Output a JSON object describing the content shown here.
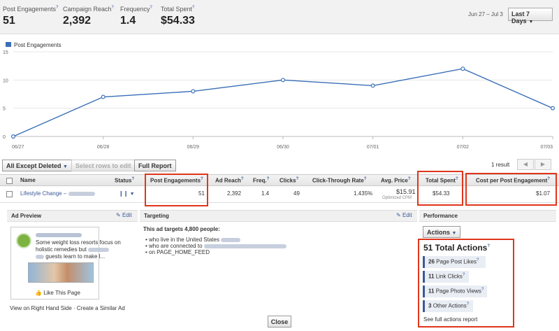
{
  "stats": [
    {
      "label": "Post Engagements",
      "value": "51"
    },
    {
      "label": "Campaign Reach",
      "value": "2,392"
    },
    {
      "label": "Frequency",
      "value": "1.4"
    },
    {
      "label": "Total Spent",
      "value": "$54.33"
    }
  ],
  "help_mark": "?",
  "date_range": "Jun 27 – Jul 3",
  "range_button": "Last 7 Days",
  "chart_data": {
    "type": "line",
    "legend": [
      "Post Engagements"
    ],
    "x": [
      "06/27",
      "06/28",
      "06/29",
      "06/30",
      "07/01",
      "07/02",
      "07/03"
    ],
    "series": [
      {
        "name": "Post Engagements",
        "values": [
          0,
          7,
          8,
          10,
          9,
          12,
          5
        ]
      }
    ],
    "yticks": [
      "0",
      "5",
      "10",
      "15"
    ],
    "ylim": [
      0,
      15
    ],
    "color": "#3a6fb7",
    "grid": true
  },
  "toolbar": {
    "filter_label": "All Except Deleted",
    "select_label": "Select rows to edit",
    "full_report_label": "Full Report",
    "result_count": "1 result"
  },
  "table": {
    "headers": [
      "Name",
      "Status",
      "Post Engagements",
      "Ad Reach",
      "Freq.",
      "Clicks",
      "Click-Through Rate",
      "Avg. Price",
      "Total Spent",
      "Cost per Post Engagement"
    ],
    "row": {
      "name": "Lifestyle Change –",
      "post_engagements": "51",
      "ad_reach": "2,392",
      "freq": "1.4",
      "clicks": "49",
      "ctr": "1.435%",
      "avg_price": "$15.91",
      "avg_price_sub": "Optimized CPM",
      "total_spent": "$54.33",
      "cost_per": "$1.07"
    }
  },
  "ad_preview": {
    "header": "Ad Preview",
    "edit_label": "Edit",
    "body_lines": [
      "Some weight loss resorts focus on",
      "holistic remedies but",
      "guests learn to make l..."
    ],
    "like_label": "Like This Page",
    "footer_links": "View on Right Hand Side · Create a Similar Ad"
  },
  "targeting": {
    "header": "Targeting",
    "edit_label": "Edit",
    "summary": "This ad targets 4,800 people:",
    "bullets": [
      "who live in the United States",
      "who are connected to",
      "on PAGE_HOME_FEED"
    ]
  },
  "performance": {
    "header": "Performance",
    "actions_button": "Actions",
    "total_actions": "51 Total Actions",
    "actions": [
      {
        "count": "26",
        "label": "Page Post Likes"
      },
      {
        "count": "11",
        "label": "Link Clicks"
      },
      {
        "count": "11",
        "label": "Page Photo Views"
      },
      {
        "count": "3",
        "label": "Other Actions"
      }
    ],
    "report_link": "See full actions report"
  },
  "close_label": "Close",
  "accent_color": "#3b5998",
  "highlight_color": "#e0361b"
}
